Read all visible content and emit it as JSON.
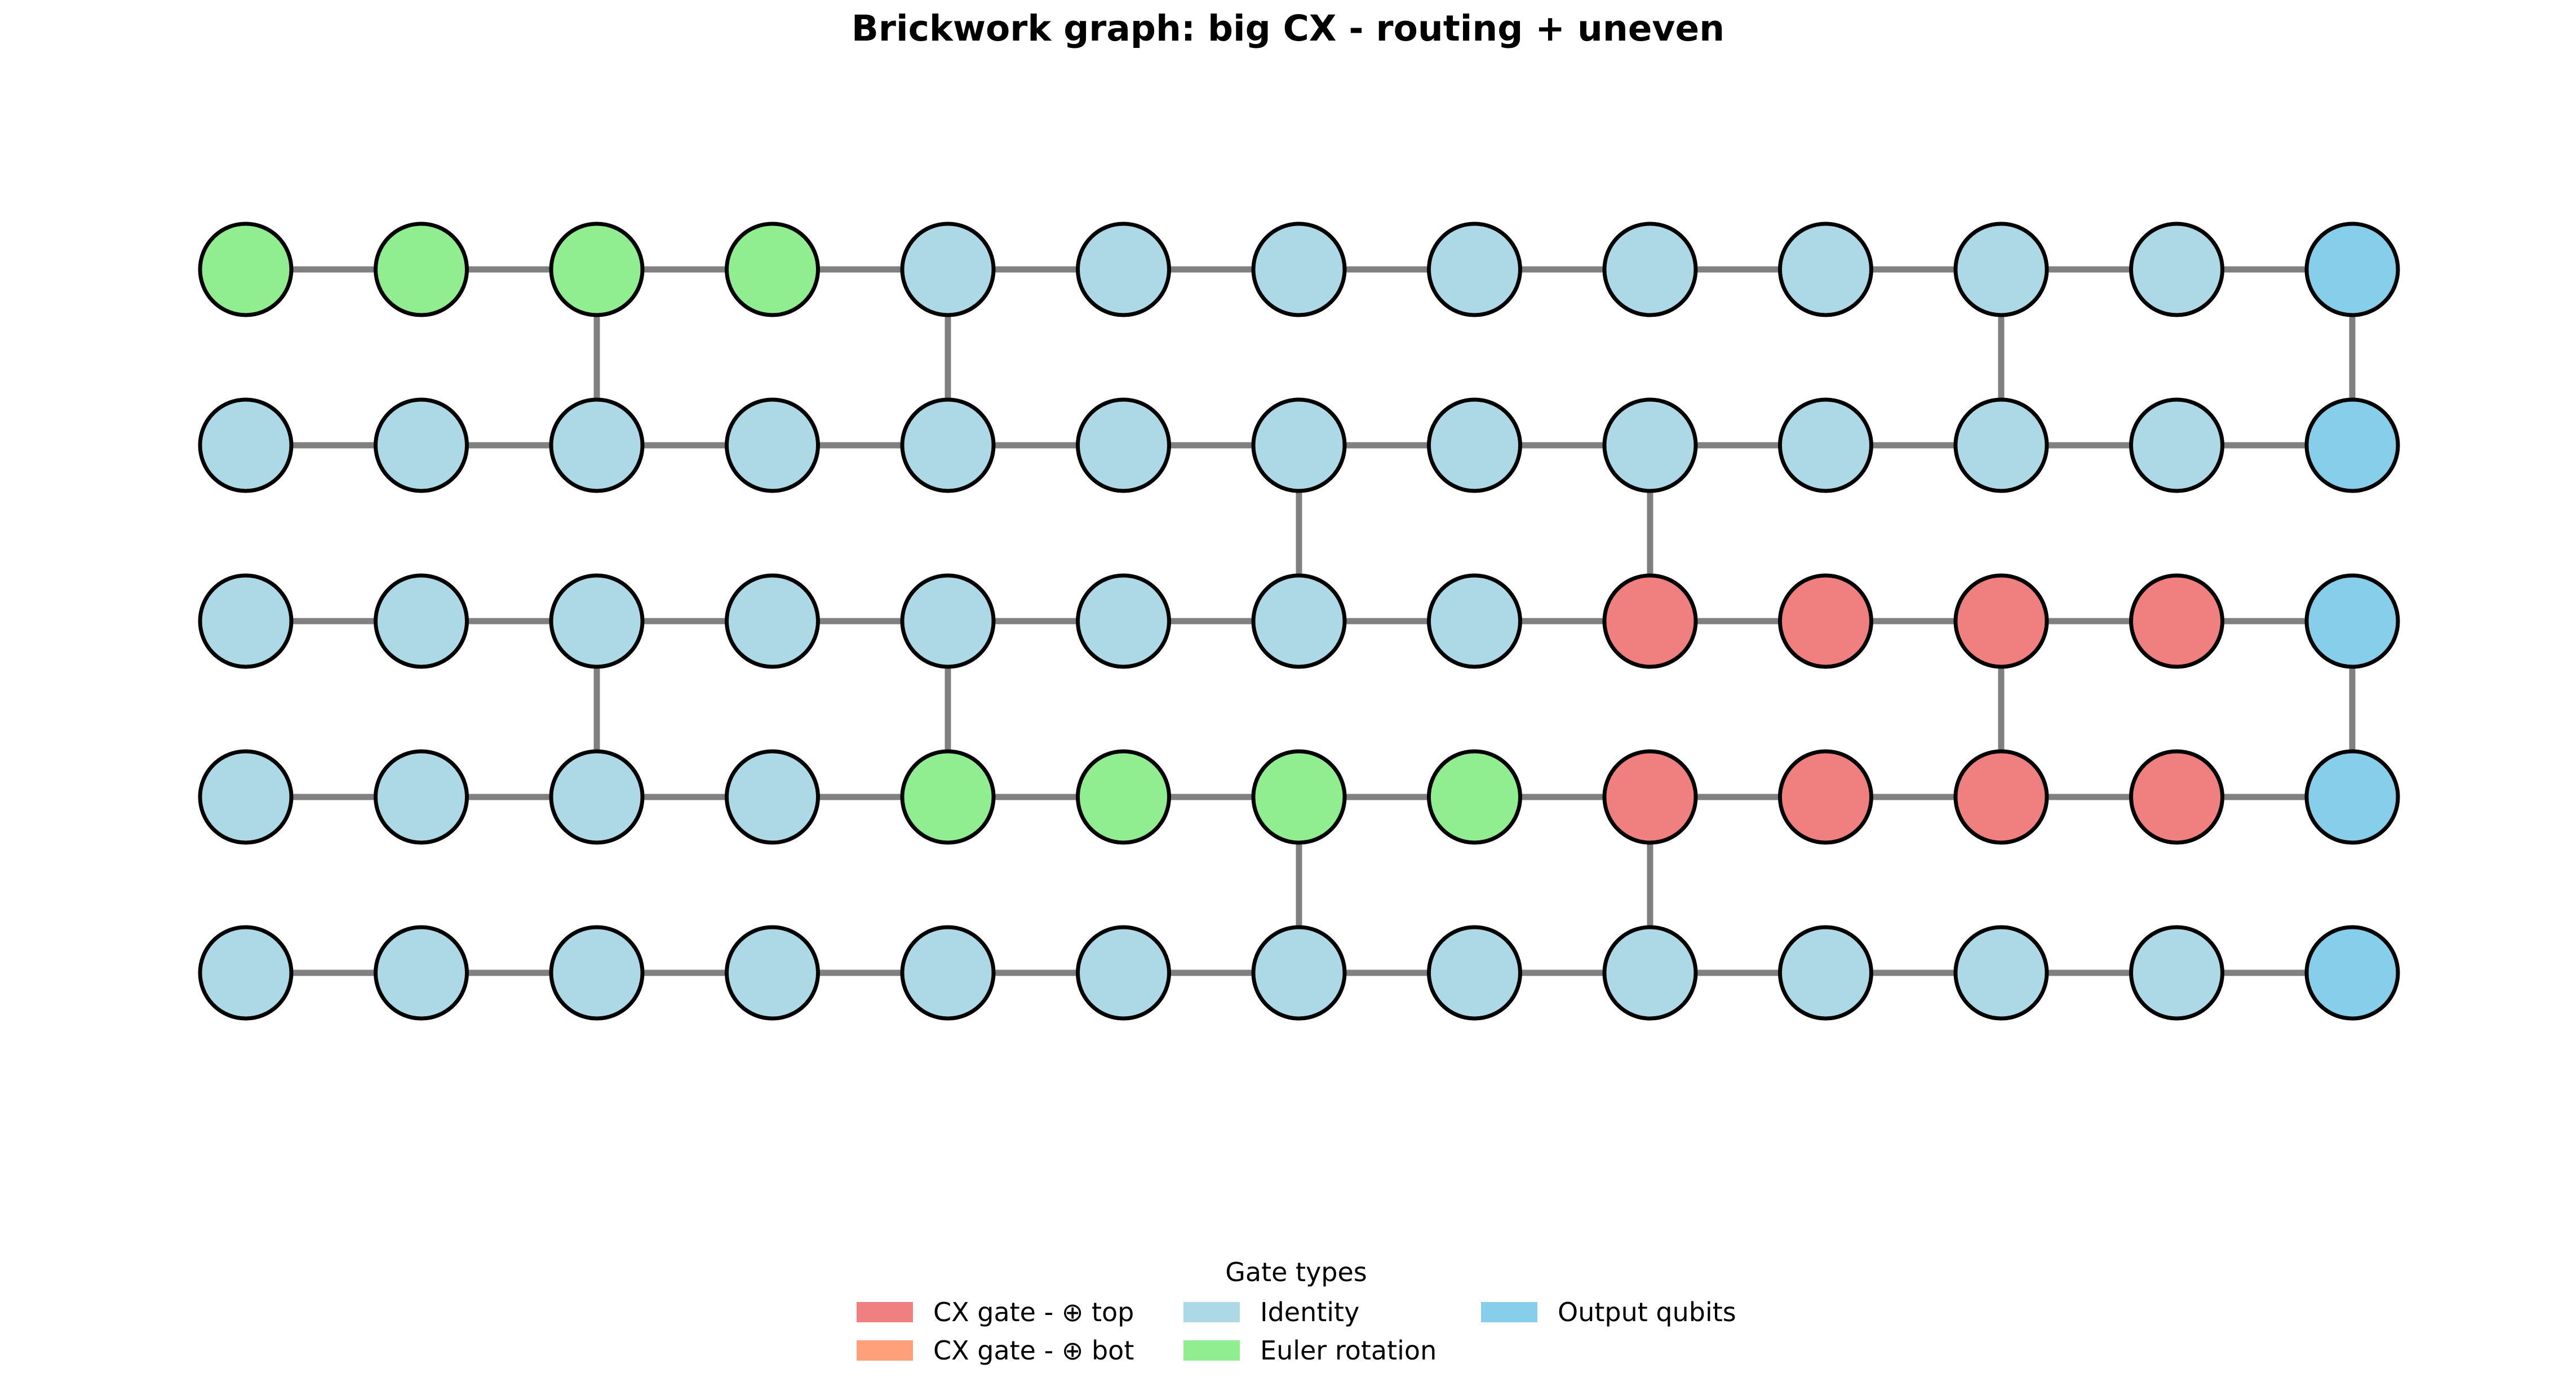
{
  "title": "Brickwork graph: big CX - routing + uneven",
  "colors": {
    "edge": "#808080",
    "node_stroke": "#000000",
    "cx_top": "#f08080",
    "cx_bot": "#ffa07a",
    "identity": "#add8e6",
    "euler": "#90ee90",
    "output": "#87ceeb"
  },
  "grid": {
    "rows": [
      [
        "euler",
        "euler",
        "euler",
        "euler",
        "identity",
        "identity",
        "identity",
        "identity",
        "identity",
        "identity",
        "identity",
        "identity",
        "output"
      ],
      [
        "identity",
        "identity",
        "identity",
        "identity",
        "identity",
        "identity",
        "identity",
        "identity",
        "identity",
        "identity",
        "identity",
        "identity",
        "output"
      ],
      [
        "identity",
        "identity",
        "identity",
        "identity",
        "identity",
        "identity",
        "identity",
        "identity",
        "cx_top",
        "cx_top",
        "cx_top",
        "cx_top",
        "output"
      ],
      [
        "identity",
        "identity",
        "identity",
        "identity",
        "euler",
        "euler",
        "euler",
        "euler",
        "cx_top",
        "cx_top",
        "cx_top",
        "cx_top",
        "output"
      ],
      [
        "identity",
        "identity",
        "identity",
        "identity",
        "identity",
        "identity",
        "identity",
        "identity",
        "identity",
        "identity",
        "identity",
        "identity",
        "output"
      ]
    ],
    "vertical_edges": [
      {
        "col": 2,
        "row": 0
      },
      {
        "col": 4,
        "row": 0
      },
      {
        "col": 10,
        "row": 0
      },
      {
        "col": 12,
        "row": 0
      },
      {
        "col": 6,
        "row": 1
      },
      {
        "col": 8,
        "row": 1
      },
      {
        "col": 2,
        "row": 2
      },
      {
        "col": 4,
        "row": 2
      },
      {
        "col": 10,
        "row": 2
      },
      {
        "col": 12,
        "row": 2
      },
      {
        "col": 6,
        "row": 3
      },
      {
        "col": 8,
        "row": 3
      }
    ]
  },
  "legend": {
    "title": "Gate types",
    "items": [
      {
        "label": "CX gate - ⊕ top",
        "color": "#f08080"
      },
      {
        "label": "CX gate - ⊕ bot",
        "color": "#ffa07a"
      },
      {
        "label": "Identity",
        "color": "#add8e6"
      },
      {
        "label": "Euler rotation",
        "color": "#90ee90"
      },
      {
        "label": "Output qubits",
        "color": "#87ceeb"
      }
    ]
  }
}
